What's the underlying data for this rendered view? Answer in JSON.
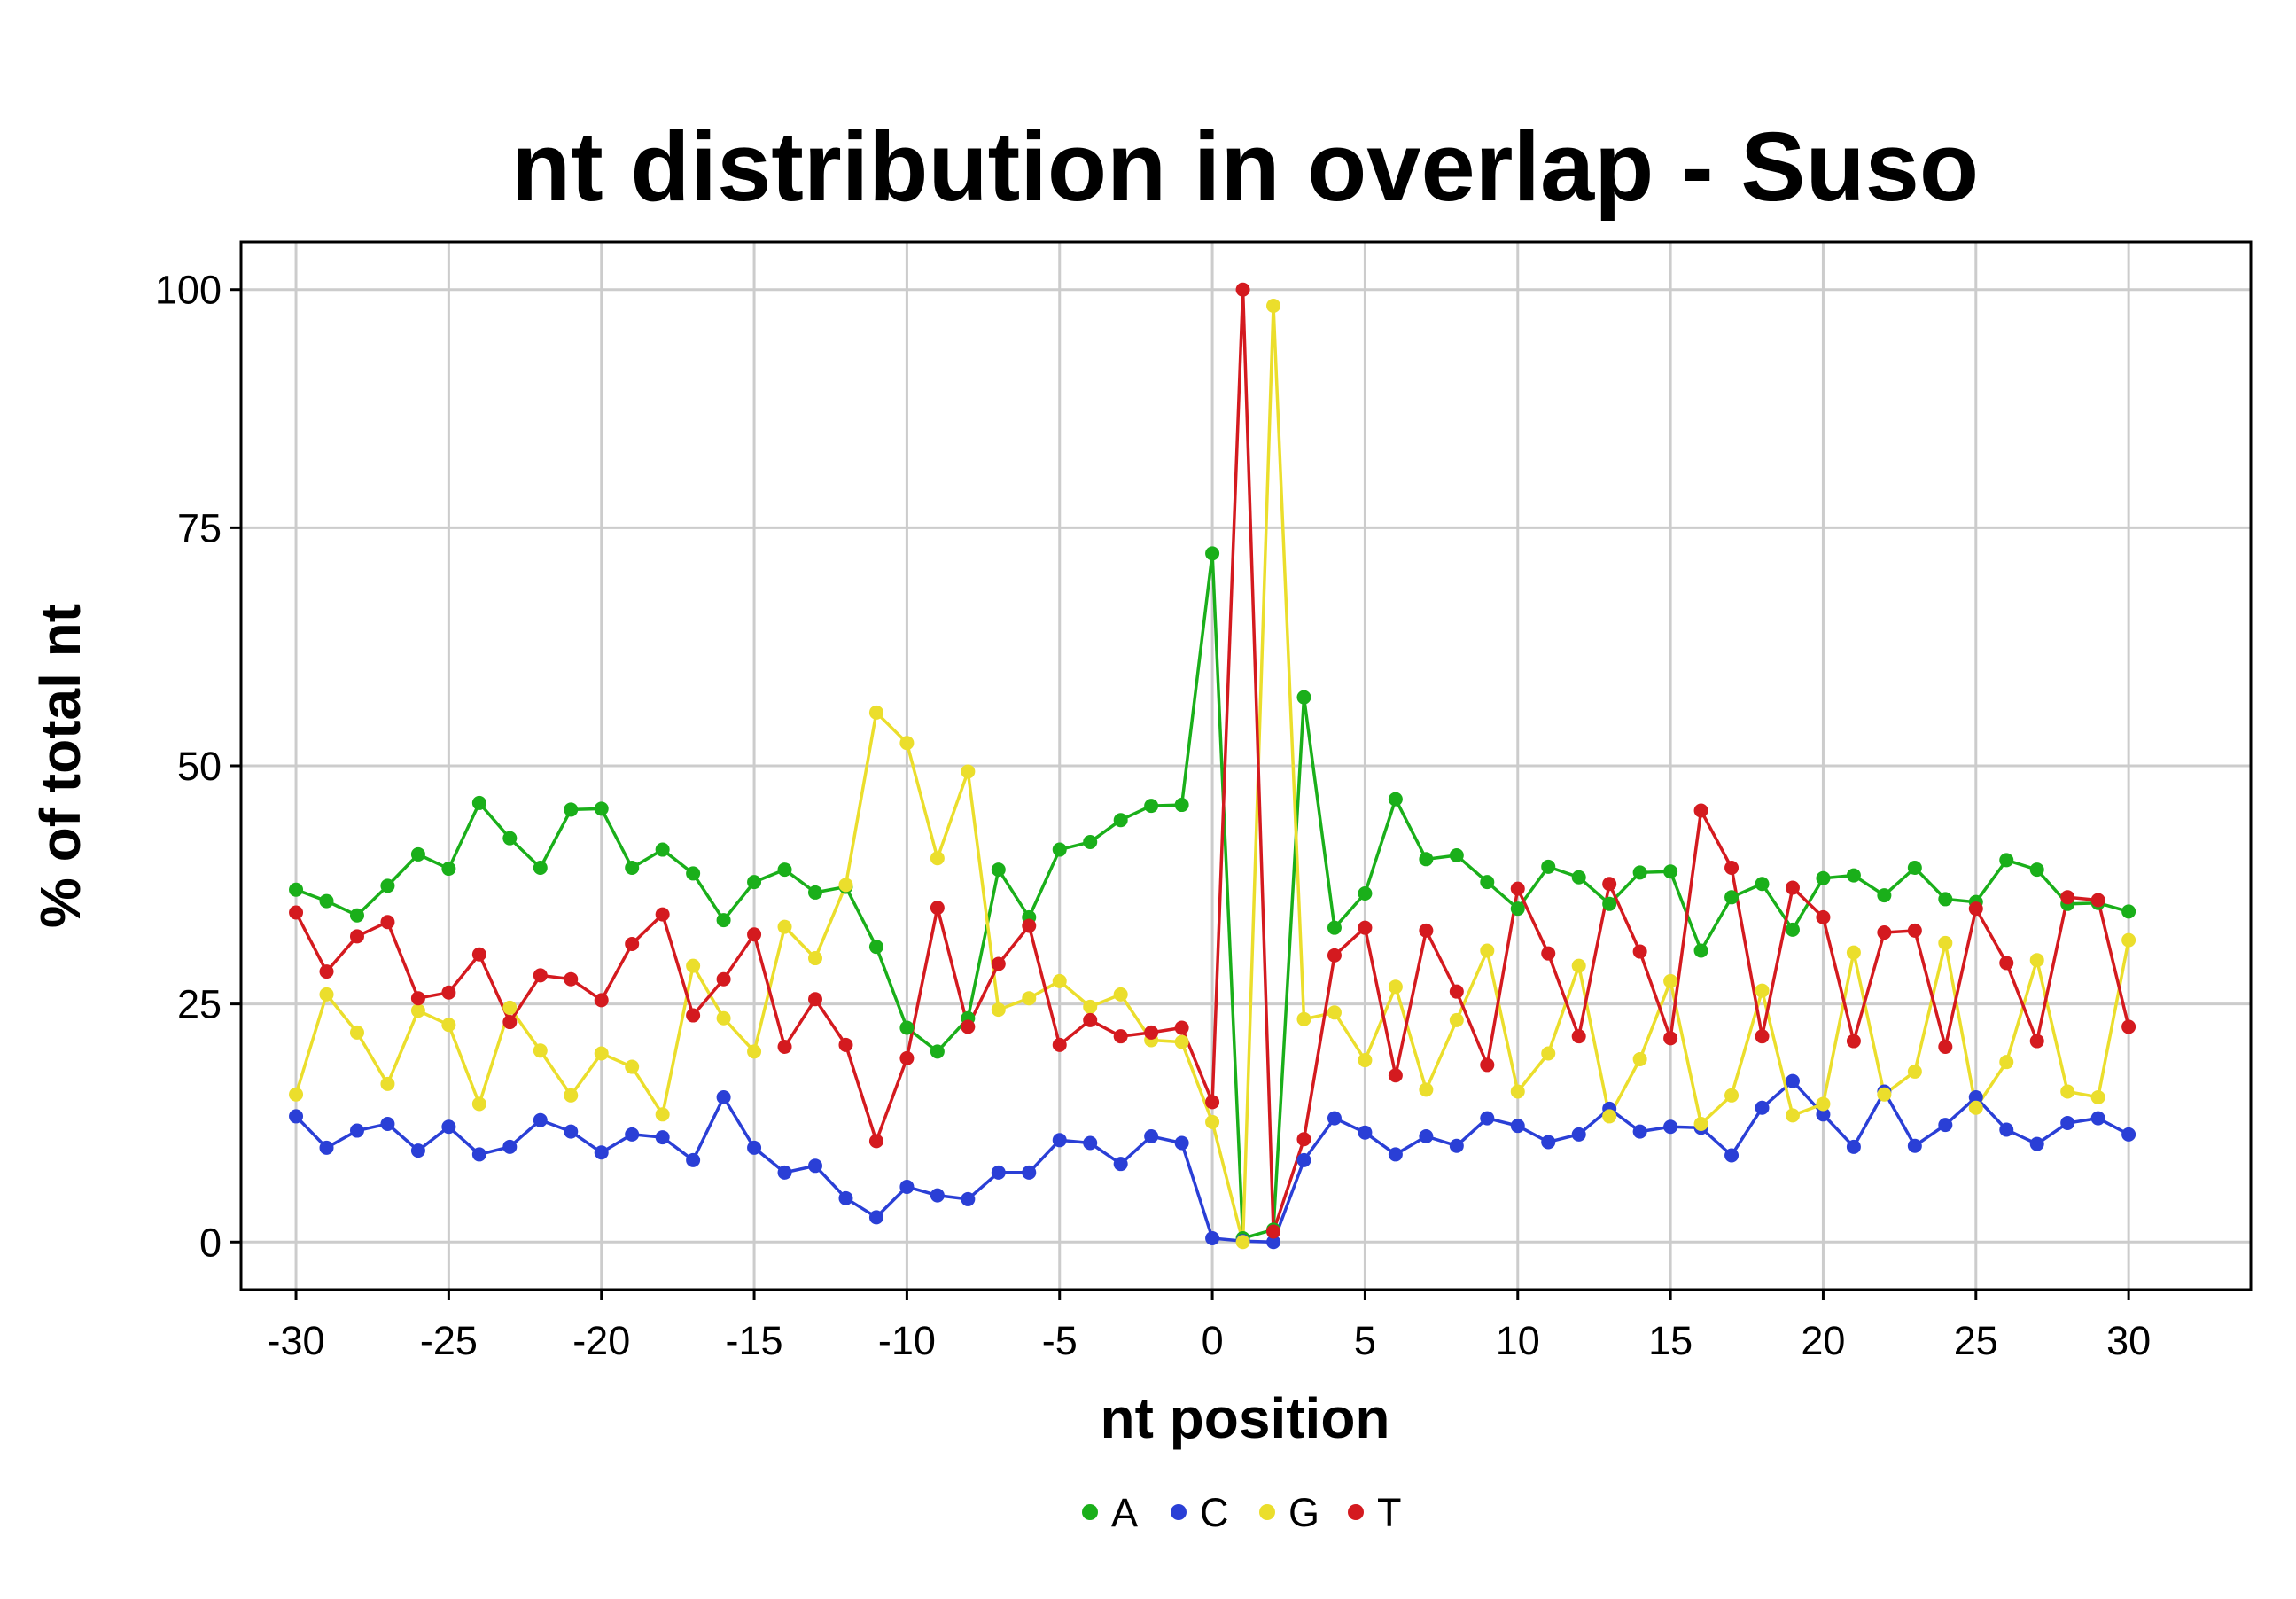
{
  "chart_data": {
    "type": "line",
    "title": "nt distribution in overlap - Suso",
    "xlabel": "nt position",
    "ylabel": "% of total nt",
    "xlim": [
      -31.8,
      34.0
    ],
    "ylim": [
      -5,
      105
    ],
    "xticks": [
      -30,
      -25,
      -20,
      -15,
      -10,
      -5,
      0,
      5,
      10,
      15,
      20,
      25,
      30
    ],
    "xtick_labels": [
      "-30",
      "-25",
      "-20",
      "-15",
      "-10",
      "-5",
      "0",
      "5",
      "10",
      "15",
      "20",
      "25",
      "30"
    ],
    "yticks": [
      0,
      25,
      50,
      75,
      100
    ],
    "ytick_labels": [
      "0",
      "25",
      "50",
      "75",
      "100"
    ],
    "grid": true,
    "legend_position": "bottom",
    "x": [
      -30,
      -29,
      -28,
      -27,
      -26,
      -25,
      -24,
      -23,
      -22,
      -21,
      -20,
      -19,
      -18,
      -17,
      -16,
      -15,
      -14,
      -13,
      -12,
      -11,
      -10,
      -9,
      -8,
      -7,
      -6,
      -5,
      -4,
      -3,
      -2,
      -1,
      0,
      1,
      2,
      3,
      4,
      5,
      6,
      7,
      8,
      9,
      10,
      11,
      12,
      13,
      14,
      15,
      16,
      17,
      18,
      19,
      20,
      21,
      22,
      23,
      24,
      25,
      26,
      27,
      28,
      29,
      30
    ],
    "series": [
      {
        "name": "A",
        "color": "#1aaf1a",
        "values": [
          37.0,
          35.8,
          34.3,
          37.4,
          40.7,
          39.2,
          46.1,
          42.4,
          39.3,
          45.4,
          45.5,
          39.3,
          41.2,
          38.7,
          33.8,
          37.8,
          39.1,
          36.7,
          37.3,
          31.0,
          22.5,
          20.0,
          23.5,
          39.1,
          34.1,
          41.2,
          42.0,
          44.3,
          45.8,
          45.9,
          72.3,
          0.4,
          1.3,
          57.2,
          33.0,
          36.6,
          46.5,
          40.2,
          40.6,
          37.8,
          35.0,
          39.4,
          38.3,
          35.5,
          38.8,
          38.9,
          30.6,
          36.2,
          37.6,
          32.8,
          38.2,
          38.5,
          36.4,
          39.3,
          36.0,
          35.7,
          40.1,
          39.1,
          35.5,
          35.6,
          34.7
        ]
      },
      {
        "name": "C",
        "color": "#2a3fd6",
        "values": [
          13.2,
          9.9,
          11.7,
          12.4,
          9.6,
          12.1,
          9.2,
          10.0,
          12.8,
          11.6,
          9.4,
          11.3,
          11.0,
          8.6,
          15.2,
          9.9,
          7.3,
          8.0,
          4.6,
          2.6,
          5.8,
          4.9,
          4.5,
          7.3,
          7.3,
          10.7,
          10.4,
          8.2,
          11.1,
          10.4,
          0.4,
          0.1,
          0.0,
          8.6,
          13.0,
          11.5,
          9.2,
          11.1,
          10.1,
          13.0,
          12.2,
          10.5,
          11.3,
          14.0,
          11.6,
          12.1,
          12.0,
          9.1,
          14.1,
          16.9,
          13.4,
          10.0,
          15.8,
          10.1,
          12.3,
          15.2,
          11.8,
          10.3,
          12.5,
          13.0,
          11.3
        ]
      },
      {
        "name": "G",
        "color": "#ebde2c",
        "values": [
          15.5,
          26.0,
          22.0,
          16.6,
          24.3,
          22.8,
          14.5,
          24.6,
          20.1,
          15.4,
          19.8,
          18.4,
          13.4,
          29.0,
          23.5,
          20.0,
          33.1,
          29.8,
          37.5,
          55.6,
          52.4,
          40.3,
          49.4,
          24.4,
          25.6,
          27.4,
          24.7,
          26.0,
          21.2,
          21.0,
          12.6,
          0.0,
          98.3,
          23.4,
          24.1,
          19.1,
          26.8,
          16.0,
          23.3,
          30.6,
          15.8,
          19.8,
          29.0,
          13.2,
          19.2,
          27.4,
          12.4,
          15.4,
          26.4,
          13.3,
          14.5,
          30.4,
          15.5,
          17.9,
          31.4,
          14.1,
          18.9,
          29.6,
          15.8,
          15.2,
          31.7
        ]
      },
      {
        "name": "T",
        "color": "#d41a1f",
        "values": [
          34.6,
          28.4,
          32.1,
          33.6,
          25.6,
          26.2,
          30.2,
          23.1,
          28.0,
          27.6,
          25.4,
          31.3,
          34.4,
          23.8,
          27.6,
          32.3,
          20.5,
          25.5,
          20.7,
          10.6,
          19.3,
          35.1,
          22.6,
          29.2,
          33.2,
          20.7,
          23.3,
          21.6,
          22.0,
          22.5,
          14.7,
          100.0,
          1.1,
          10.8,
          30.1,
          33.0,
          17.5,
          32.7,
          26.3,
          18.6,
          37.1,
          30.3,
          21.6,
          37.6,
          30.5,
          21.4,
          45.3,
          39.3,
          21.6,
          37.2,
          34.1,
          21.1,
          32.5,
          32.7,
          20.5,
          35.0,
          29.3,
          21.1,
          36.2,
          35.9,
          22.6
        ]
      }
    ]
  }
}
